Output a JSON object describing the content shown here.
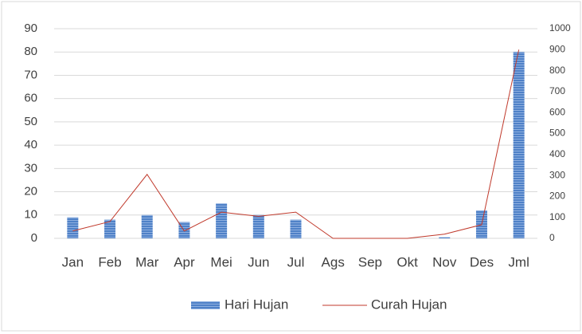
{
  "chart_data": {
    "type": "bar",
    "categories": [
      "Jan",
      "Feb",
      "Mar",
      "Apr",
      "Mei",
      "Jun",
      "Jul",
      "Ags",
      "Sep",
      "Okt",
      "Nov",
      "Des",
      "Jml"
    ],
    "series": [
      {
        "name": "Hari Hujan",
        "type": "bar",
        "color": "#4f81c7",
        "values": [
          9,
          8,
          10,
          7,
          15,
          10,
          8,
          0,
          0,
          0,
          0.5,
          12,
          80
        ]
      },
      {
        "name": "Curah Hujan",
        "type": "line",
        "axis": "y2",
        "color": "#c0392b",
        "values": [
          35,
          80,
          305,
          35,
          125,
          105,
          125,
          0,
          0,
          0,
          20,
          65,
          900
        ]
      }
    ],
    "ylim": [
      0,
      90
    ],
    "yticks": [
      0,
      10,
      20,
      30,
      40,
      50,
      60,
      70,
      80,
      90
    ],
    "y2lim": [
      0,
      1000
    ],
    "y2ticks": [
      0,
      100,
      200,
      300,
      400,
      500,
      600,
      700,
      800,
      900,
      1000
    ],
    "grid": true,
    "legend": "bottom"
  }
}
